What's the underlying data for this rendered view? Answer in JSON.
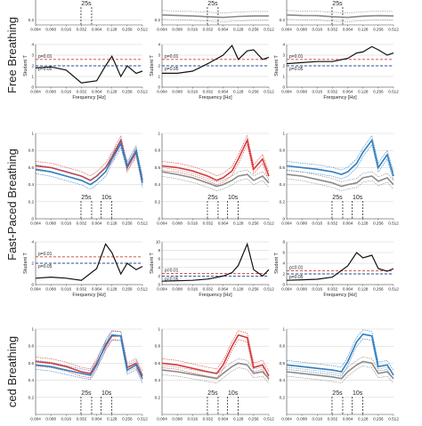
{
  "row_labels": [
    "Free Breathing",
    "Fast-Paced Breathing",
    "ced Breathing"
  ],
  "x_axis_label": "Frequency [Hz]",
  "t_axis_label": "Student T",
  "x_ticks": [
    "0.004",
    "0.008",
    "0.016",
    "0.032",
    "0.064",
    "0.128",
    "0.256",
    "0.512"
  ],
  "colors": {
    "red": "#d93a3a",
    "blue": "#2f7fc1",
    "gray": "#8a8a8a",
    "black": "#111111",
    "p01": "#d93a3a",
    "p05": "#2a4a9a"
  },
  "chart_data": [
    {
      "type": "line",
      "row": 0,
      "col": 0,
      "panel": "coherence",
      "ylim": [
        0,
        1
      ],
      "y_ticks": [
        "0.2"
      ],
      "annotations": [
        {
          "text": "25s",
          "x": 0.04
        }
      ],
      "x": [
        0.004,
        0.008,
        0.016,
        0.032,
        0.064,
        0.128,
        0.256,
        0.512
      ],
      "series": []
    },
    {
      "type": "line",
      "row": 0,
      "col": 1,
      "panel": "coherence",
      "ylim": [
        0,
        1
      ],
      "y_ticks": [
        "0.2"
      ],
      "annotations": [
        {
          "text": "25s",
          "x": 0.04
        }
      ],
      "x": [
        0.004,
        0.008,
        0.016,
        0.032,
        0.064,
        0.128,
        0.256,
        0.512
      ],
      "series": [
        {
          "color": "gray",
          "values": [
            0.4,
            0.38,
            0.36,
            0.33,
            0.3,
            0.34,
            0.36,
            0.36
          ]
        }
      ]
    },
    {
      "type": "line",
      "row": 0,
      "col": 2,
      "panel": "coherence",
      "ylim": [
        0,
        1
      ],
      "y_ticks": [
        "0.2"
      ],
      "annotations": [
        {
          "text": "25s",
          "x": 0.04
        }
      ],
      "x": [
        0.004,
        0.008,
        0.016,
        0.032,
        0.064,
        0.128,
        0.256,
        0.512
      ],
      "series": [
        {
          "color": "gray",
          "values": [
            0.4,
            0.38,
            0.37,
            0.33,
            0.3,
            0.35,
            0.37,
            0.36
          ]
        }
      ]
    },
    {
      "type": "line",
      "row": 0,
      "col": 0,
      "panel": "ttest",
      "ylim": [
        0,
        4
      ],
      "y_ticks": [
        "0",
        "1",
        "2",
        "3",
        "4"
      ],
      "p_labels": [
        "p=0.01",
        "p=0.05"
      ],
      "p_values": [
        2.6,
        2.0
      ],
      "x": [
        0.004,
        0.008,
        0.016,
        0.032,
        0.064,
        0.096,
        0.128,
        0.192,
        0.256,
        0.384,
        0.512
      ],
      "values": [
        1.8,
        1.9,
        1.6,
        0.4,
        0.6,
        2.0,
        2.9,
        1.0,
        2.0,
        1.3,
        1.5
      ]
    },
    {
      "type": "line",
      "row": 0,
      "col": 1,
      "panel": "ttest",
      "ylim": [
        0,
        4
      ],
      "y_ticks": [
        "0",
        "1",
        "2",
        "3",
        "4"
      ],
      "p_labels": [
        "p=0.01",
        "p=0.05"
      ],
      "p_values": [
        2.6,
        2.0
      ],
      "x": [
        0.004,
        0.008,
        0.016,
        0.032,
        0.064,
        0.096,
        0.128,
        0.192,
        0.256,
        0.384,
        0.512
      ],
      "values": [
        1.3,
        1.3,
        1.5,
        2.2,
        3.0,
        3.9,
        2.6,
        3.4,
        3.5,
        2.6,
        2.8
      ]
    },
    {
      "type": "line",
      "row": 0,
      "col": 2,
      "panel": "ttest",
      "ylim": [
        0,
        4
      ],
      "y_ticks": [
        "0",
        "1",
        "2",
        "3",
        "4"
      ],
      "p_labels": [
        "p=0.01",
        "p=0.05"
      ],
      "p_values": [
        2.6,
        2.0
      ],
      "x": [
        0.004,
        0.008,
        0.016,
        0.032,
        0.064,
        0.096,
        0.128,
        0.192,
        0.256,
        0.384,
        0.512
      ],
      "values": [
        2.2,
        2.3,
        2.4,
        2.4,
        2.7,
        3.2,
        3.3,
        3.8,
        3.5,
        3.0,
        3.2
      ]
    },
    {
      "type": "line",
      "row": 1,
      "col": 0,
      "panel": "coherence",
      "ylim": [
        0,
        1
      ],
      "y_ticks": [
        "0",
        "0.2",
        "0.4",
        "0.6",
        "0.8",
        "1"
      ],
      "annotations": [
        {
          "text": "25s",
          "x": 0.04
        },
        {
          "text": "10s",
          "x": 0.1
        }
      ],
      "x": [
        0.004,
        0.008,
        0.016,
        0.032,
        0.048,
        0.064,
        0.096,
        0.128,
        0.192,
        0.256,
        0.384,
        0.512
      ],
      "series": [
        {
          "color": "red",
          "values": [
            0.62,
            0.6,
            0.55,
            0.5,
            0.45,
            0.5,
            0.6,
            0.72,
            0.92,
            0.6,
            0.78,
            0.45
          ]
        },
        {
          "color": "blue",
          "values": [
            0.58,
            0.55,
            0.5,
            0.45,
            0.4,
            0.45,
            0.55,
            0.7,
            0.88,
            0.62,
            0.8,
            0.42
          ]
        }
      ]
    },
    {
      "type": "line",
      "row": 1,
      "col": 1,
      "panel": "coherence",
      "ylim": [
        0,
        1
      ],
      "y_ticks": [
        "0",
        "0.2",
        "0.4",
        "0.6",
        "0.8",
        "1"
      ],
      "annotations": [
        {
          "text": "25s",
          "x": 0.04
        },
        {
          "text": "10s",
          "x": 0.1
        }
      ],
      "x": [
        0.004,
        0.008,
        0.016,
        0.032,
        0.048,
        0.064,
        0.096,
        0.128,
        0.192,
        0.256,
        0.384,
        0.512
      ],
      "series": [
        {
          "color": "red",
          "values": [
            0.62,
            0.6,
            0.56,
            0.5,
            0.45,
            0.48,
            0.56,
            0.7,
            0.92,
            0.58,
            0.7,
            0.5
          ]
        },
        {
          "color": "gray",
          "values": [
            0.55,
            0.52,
            0.48,
            0.42,
            0.38,
            0.4,
            0.45,
            0.5,
            0.52,
            0.45,
            0.5,
            0.42
          ]
        }
      ]
    },
    {
      "type": "line",
      "row": 1,
      "col": 2,
      "panel": "coherence",
      "ylim": [
        0,
        1
      ],
      "y_ticks": [
        "0",
        "0.2",
        "0.4",
        "0.6",
        "0.8",
        "1"
      ],
      "annotations": [
        {
          "text": "25s",
          "x": 0.04
        },
        {
          "text": "10s",
          "x": 0.1
        }
      ],
      "x": [
        0.004,
        0.008,
        0.016,
        0.032,
        0.048,
        0.064,
        0.096,
        0.128,
        0.192,
        0.256,
        0.384,
        0.512
      ],
      "series": [
        {
          "color": "blue",
          "values": [
            0.62,
            0.6,
            0.58,
            0.55,
            0.52,
            0.55,
            0.65,
            0.78,
            0.92,
            0.6,
            0.75,
            0.5
          ]
        },
        {
          "color": "gray",
          "values": [
            0.52,
            0.5,
            0.46,
            0.42,
            0.38,
            0.4,
            0.42,
            0.48,
            0.5,
            0.44,
            0.48,
            0.4
          ]
        }
      ]
    },
    {
      "type": "line",
      "row": 1,
      "col": 0,
      "panel": "ttest",
      "ylim": [
        0,
        4
      ],
      "y_ticks": [
        "0",
        "2",
        "4"
      ],
      "p_labels": [
        "p=0.01",
        "p=0.05"
      ],
      "p_values": [
        2.6,
        2.0
      ],
      "x": [
        0.004,
        0.008,
        0.016,
        0.032,
        0.064,
        0.096,
        0.128,
        0.192,
        0.256,
        0.384,
        0.512
      ],
      "values": [
        0.6,
        0.7,
        0.6,
        0.4,
        1.5,
        3.8,
        3.0,
        1.0,
        2.0,
        1.4,
        1.7
      ]
    },
    {
      "type": "line",
      "row": 1,
      "col": 1,
      "panel": "ttest",
      "ylim": [
        0,
        10
      ],
      "y_ticks": [
        "0",
        "2",
        "4",
        "6",
        "8",
        "10"
      ],
      "p_labels": [
        "p=0.01",
        "p=0.05"
      ],
      "p_values": [
        2.6,
        2.0
      ],
      "x": [
        0.004,
        0.008,
        0.016,
        0.032,
        0.064,
        0.096,
        0.128,
        0.192,
        0.256,
        0.384,
        0.512
      ],
      "values": [
        0.8,
        0.9,
        1.0,
        1.3,
        2.0,
        2.8,
        4.5,
        9.5,
        3.5,
        2.0,
        3.5
      ]
    },
    {
      "type": "line",
      "row": 1,
      "col": 2,
      "panel": "ttest",
      "ylim": [
        0,
        8
      ],
      "y_ticks": [
        "0",
        "2",
        "4",
        "6",
        "8"
      ],
      "p_labels": [
        "p=0.01",
        "p=0.05"
      ],
      "p_values": [
        2.6,
        2.0
      ],
      "x": [
        0.004,
        0.008,
        0.016,
        0.032,
        0.064,
        0.096,
        0.128,
        0.192,
        0.256,
        0.384,
        0.512
      ],
      "values": [
        0.8,
        0.9,
        1.0,
        1.4,
        3.5,
        6.0,
        5.0,
        5.5,
        3.0,
        2.5,
        3.0
      ]
    },
    {
      "type": "line",
      "row": 2,
      "col": 0,
      "panel": "coherence",
      "ylim": [
        0,
        1
      ],
      "y_ticks": [
        "0.2",
        "0.4",
        "0.6",
        "0.8",
        "1"
      ],
      "annotations": [
        {
          "text": "25s",
          "x": 0.04
        },
        {
          "text": "10s",
          "x": 0.1
        }
      ],
      "x": [
        0.004,
        0.008,
        0.016,
        0.032,
        0.048,
        0.064,
        0.096,
        0.128,
        0.192,
        0.256,
        0.384,
        0.512
      ],
      "series": [
        {
          "color": "red",
          "values": [
            0.62,
            0.6,
            0.56,
            0.5,
            0.48,
            0.6,
            0.8,
            0.92,
            0.92,
            0.55,
            0.6,
            0.45
          ]
        },
        {
          "color": "blue",
          "values": [
            0.58,
            0.56,
            0.52,
            0.48,
            0.46,
            0.58,
            0.82,
            0.93,
            0.92,
            0.52,
            0.58,
            0.42
          ]
        }
      ]
    },
    {
      "type": "line",
      "row": 2,
      "col": 1,
      "panel": "coherence",
      "ylim": [
        0,
        1
      ],
      "y_ticks": [
        "0.2",
        "0.4",
        "0.6",
        "0.8",
        "1"
      ],
      "annotations": [
        {
          "text": "25s",
          "x": 0.04
        },
        {
          "text": "10s",
          "x": 0.1
        }
      ],
      "x": [
        0.004,
        0.008,
        0.016,
        0.032,
        0.048,
        0.064,
        0.096,
        0.128,
        0.192,
        0.256,
        0.384,
        0.512
      ],
      "series": [
        {
          "color": "red",
          "values": [
            0.6,
            0.58,
            0.54,
            0.5,
            0.48,
            0.58,
            0.8,
            0.93,
            0.9,
            0.55,
            0.58,
            0.45
          ]
        },
        {
          "color": "gray",
          "values": [
            0.52,
            0.5,
            0.47,
            0.44,
            0.42,
            0.48,
            0.56,
            0.6,
            0.58,
            0.48,
            0.5,
            0.42
          ]
        }
      ]
    },
    {
      "type": "line",
      "row": 2,
      "col": 2,
      "panel": "coherence",
      "ylim": [
        0,
        1
      ],
      "y_ticks": [
        "0.2",
        "0.4",
        "0.6",
        "0.8",
        "1"
      ],
      "annotations": [
        {
          "text": "25s",
          "x": 0.04
        },
        {
          "text": "10s",
          "x": 0.1
        }
      ],
      "x": [
        0.004,
        0.008,
        0.016,
        0.032,
        0.048,
        0.064,
        0.096,
        0.128,
        0.192,
        0.256,
        0.384,
        0.512
      ],
      "series": [
        {
          "color": "blue",
          "values": [
            0.58,
            0.56,
            0.54,
            0.52,
            0.5,
            0.62,
            0.85,
            0.94,
            0.92,
            0.56,
            0.58,
            0.46
          ]
        },
        {
          "color": "gray",
          "values": [
            0.5,
            0.48,
            0.46,
            0.44,
            0.42,
            0.5,
            0.58,
            0.62,
            0.6,
            0.48,
            0.5,
            0.42
          ]
        }
      ]
    }
  ]
}
